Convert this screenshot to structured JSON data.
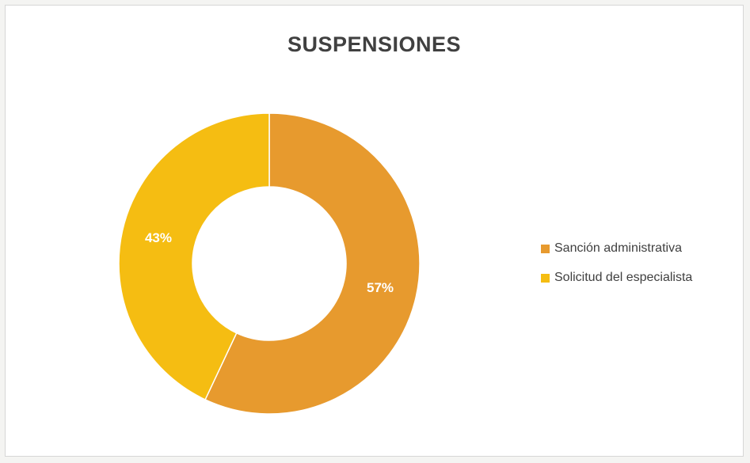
{
  "chart_data": {
    "type": "donut",
    "title": "SUSPENSIONES",
    "categories": [
      "Sanción administrativa",
      "Solicitud del especialista"
    ],
    "values": [
      57,
      43
    ],
    "data_labels": [
      "57%",
      "43%"
    ],
    "colors": [
      "#e79a2e",
      "#f5bd12"
    ],
    "legend_position": "right"
  }
}
